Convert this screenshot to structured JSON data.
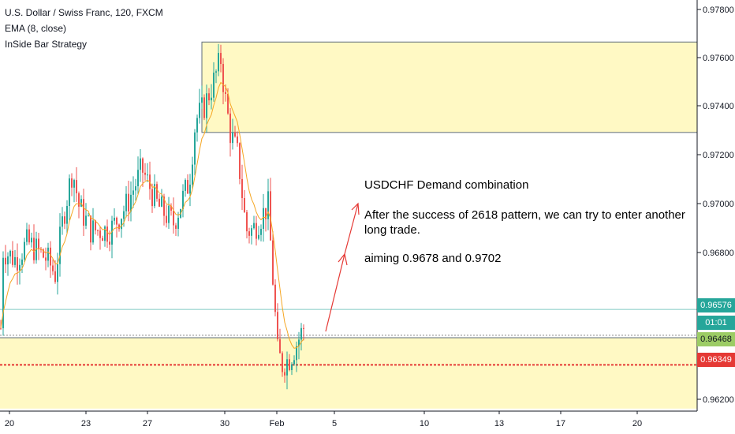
{
  "legend": {
    "symbol": "U.S. Dollar / Swiss Franc, 120, FXCM",
    "ema": "EMA (8, close)",
    "strategy": "InSide Bar Strategy"
  },
  "annotations": {
    "title": "USDCHF Demand combination",
    "line1": "After the success of 2618 pattern, we can try to enter another",
    "line2": "long trade.",
    "line3": "aiming 0.9678 and 0.9702"
  },
  "price_badges": {
    "current": "0.96576",
    "countdown": "01:01",
    "level_green": "0.96468",
    "level_red": "0.96349"
  },
  "colors": {
    "up": "#26a69a",
    "down": "#ef5350",
    "ema": "#f5a623",
    "zone_fill": "#fff9c4",
    "zone_border": "#5d6b7a",
    "arrow": "#e53935",
    "red_line": "#e53935",
    "current_line": "#80cbc4"
  },
  "chart_data": {
    "type": "candlestick",
    "y_axis_ticks": [
      "0.97800",
      "0.97600",
      "0.97400",
      "0.97200",
      "0.97000",
      "0.96800",
      "0.96200"
    ],
    "x_axis_ticks": [
      "20",
      "23",
      "27",
      "30",
      "Feb",
      "5",
      "10",
      "13",
      "17",
      "20"
    ],
    "supply_zone": [
      0.973,
      0.9767
    ],
    "demand_zone": [
      0.9617,
      0.9646
    ],
    "current_price": 0.96576,
    "levels": [
      0.96468,
      0.96349
    ],
    "target_levels": [
      0.9678,
      0.9702
    ]
  }
}
